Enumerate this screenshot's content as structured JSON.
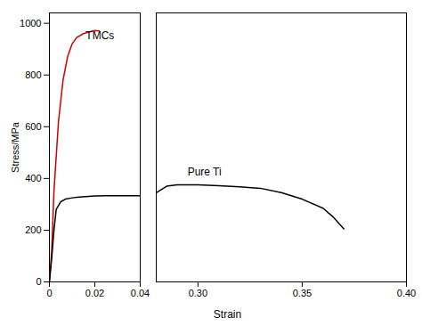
{
  "chart_data": [
    {
      "type": "line",
      "xlabel": "Strain",
      "ylabel": "Stress/MPa",
      "xlim": [
        0,
        0.04
      ],
      "xticks": [
        0,
        0.02,
        0.04
      ],
      "ylim": [
        0,
        1040
      ],
      "yticks": [
        0,
        200,
        400,
        600,
        800,
        1000
      ],
      "grid": false,
      "series": [
        {
          "color": "#cc0000",
          "x": [
            0,
            0.001,
            0.002,
            0.004,
            0.006,
            0.008,
            0.01,
            0.012,
            0.015,
            0.018,
            0.02,
            0.022
          ],
          "values": [
            0,
            120,
            350,
            620,
            780,
            870,
            920,
            945,
            960,
            968,
            972,
            970
          ]
        },
        {
          "color": "#000000",
          "x": [
            0,
            0.001,
            0.002,
            0.003,
            0.005,
            0.007,
            0.01,
            0.013,
            0.016,
            0.02,
            0.025,
            0.03,
            0.04
          ],
          "values": [
            0,
            90,
            200,
            280,
            310,
            320,
            325,
            328,
            330,
            332,
            333,
            333,
            333
          ]
        }
      ],
      "annotations": [
        {
          "text": "TMCs",
          "x": 0.016,
          "y": 940
        }
      ]
    },
    {
      "type": "line",
      "xlim": [
        0.28,
        0.4
      ],
      "xticks": [
        {
          "value": 0.3,
          "label": "0.30"
        },
        0.35,
        {
          "value": 0.4,
          "label": "0.40"
        }
      ],
      "ylim": [
        0,
        1040
      ],
      "tick_labels": "x",
      "grid": false,
      "series": [
        {
          "color": "#000000",
          "x": [
            0.28,
            0.285,
            0.29,
            0.3,
            0.31,
            0.32,
            0.33,
            0.34,
            0.35,
            0.36,
            0.365,
            0.37
          ],
          "values": [
            345,
            370,
            375,
            375,
            372,
            368,
            362,
            345,
            320,
            285,
            250,
            205
          ]
        }
      ],
      "annotations": [
        {
          "text": "Pure Ti",
          "x": 0.295,
          "y": 410
        }
      ]
    }
  ]
}
